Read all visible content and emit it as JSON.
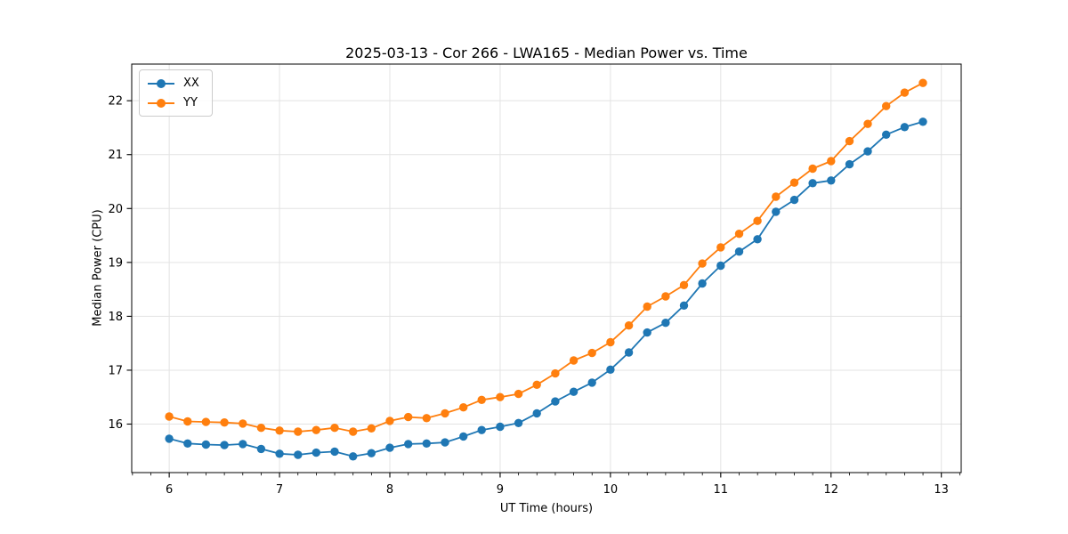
{
  "chart_data": {
    "type": "line",
    "title": "2025-03-13 - Cor 266 - LWA165 - Median Power vs. Time",
    "xlabel": "UT Time (hours)",
    "ylabel": "Median Power (CPU)",
    "xlim": [
      5.66,
      13.18
    ],
    "ylim": [
      15.1,
      22.68
    ],
    "x_ticks": [
      6,
      7,
      8,
      9,
      10,
      11,
      12,
      13
    ],
    "y_ticks": [
      16,
      17,
      18,
      19,
      20,
      21,
      22
    ],
    "x_minor_tick_step": 0.16667,
    "grid": true,
    "grid_color": "#e3e3e3",
    "legend_position": "upper-left",
    "marker": "o",
    "x": [
      6.0,
      6.167,
      6.333,
      6.5,
      6.667,
      6.833,
      7.0,
      7.167,
      7.333,
      7.5,
      7.667,
      7.833,
      8.0,
      8.167,
      8.333,
      8.5,
      8.667,
      8.833,
      9.0,
      9.167,
      9.333,
      9.5,
      9.667,
      9.833,
      10.0,
      10.167,
      10.333,
      10.5,
      10.667,
      10.833,
      11.0,
      11.167,
      11.333,
      11.5,
      11.667,
      11.833,
      12.0,
      12.167,
      12.333,
      12.5,
      12.667,
      12.833
    ],
    "series": [
      {
        "name": "XX",
        "color": "#1f77b4",
        "values": [
          15.73,
          15.64,
          15.62,
          15.61,
          15.63,
          15.54,
          15.45,
          15.43,
          15.47,
          15.49,
          15.4,
          15.46,
          15.56,
          15.63,
          15.64,
          15.66,
          15.77,
          15.89,
          15.95,
          16.02,
          16.2,
          16.42,
          16.6,
          16.77,
          17.01,
          17.33,
          17.7,
          17.88,
          18.2,
          18.61,
          18.94,
          19.2,
          19.43,
          19.94,
          20.16,
          20.47,
          20.52,
          20.82,
          21.06,
          21.37,
          21.51,
          21.61
        ]
      },
      {
        "name": "YY",
        "color": "#ff7f0e",
        "values": [
          16.14,
          16.05,
          16.04,
          16.03,
          16.01,
          15.93,
          15.88,
          15.86,
          15.89,
          15.93,
          15.86,
          15.92,
          16.06,
          16.13,
          16.11,
          16.2,
          16.31,
          16.45,
          16.5,
          16.56,
          16.73,
          16.94,
          17.18,
          17.32,
          17.52,
          17.83,
          18.18,
          18.37,
          18.58,
          18.98,
          19.28,
          19.53,
          19.77,
          20.22,
          20.48,
          20.74,
          20.88,
          21.25,
          21.57,
          21.9,
          22.15,
          22.33
        ]
      }
    ]
  }
}
